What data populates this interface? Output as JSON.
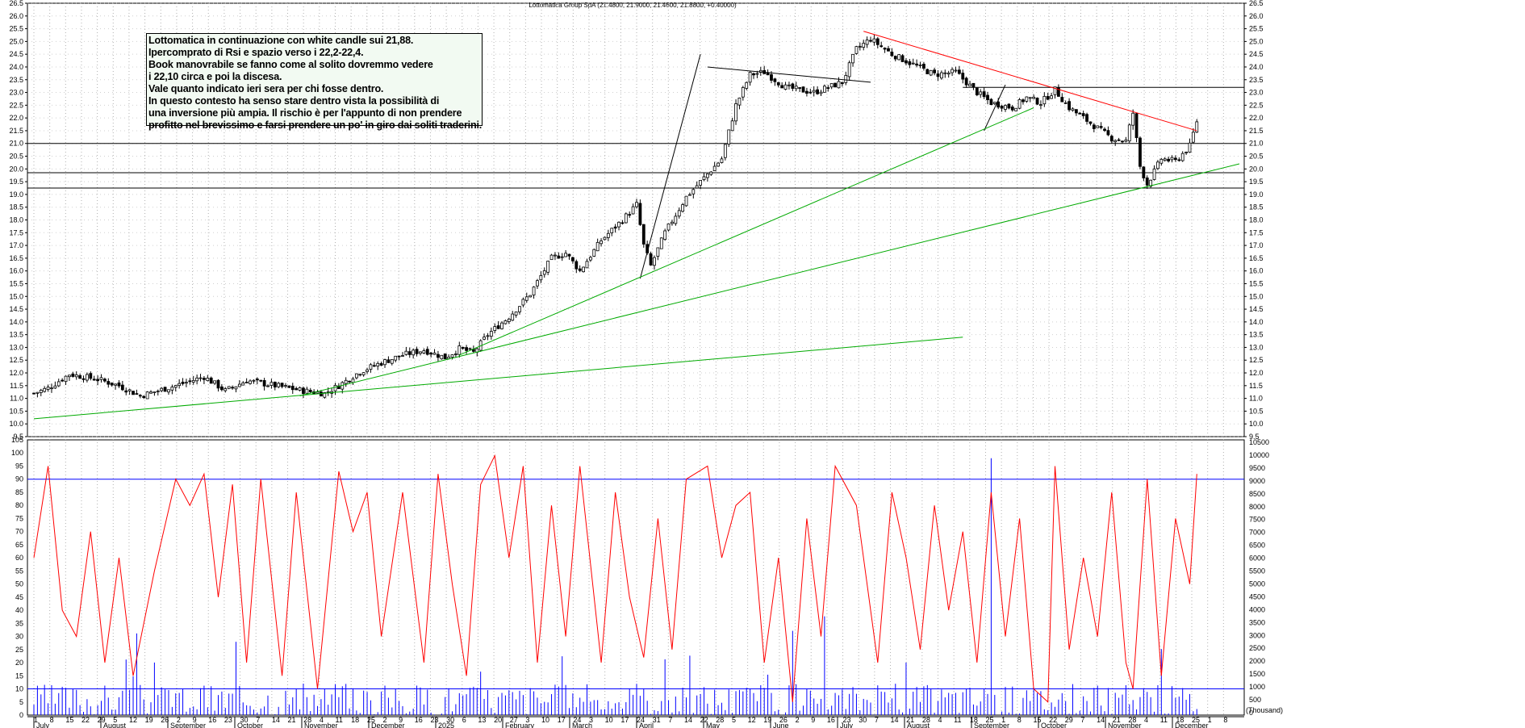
{
  "chart_data": {
    "type": "candlestick",
    "title": "Lottomatica Group SpA (21.4800, 21.9000, 21.4600, 21.8800, +0.40000)",
    "price_axis": {
      "range": [
        9.5,
        26.5
      ],
      "ticks": [
        "26.5",
        "26.0",
        "25.5",
        "25.0",
        "24.5",
        "24.0",
        "23.5",
        "23.0",
        "22.5",
        "22.0",
        "21.5",
        "21.0",
        "20.5",
        "20.0",
        "19.5",
        "19.0",
        "18.5",
        "18.0",
        "17.5",
        "17.0",
        "16.5",
        "16.0",
        "15.5",
        "15.0",
        "14.5",
        "14.0",
        "13.5",
        "13.0",
        "12.5",
        "12.0",
        "11.5",
        "11.0",
        "10.5",
        "10.0",
        "9.5"
      ]
    },
    "rsi_axis": {
      "range": [
        0,
        105
      ],
      "ticks": [
        "105",
        "100",
        "95",
        "90",
        "85",
        "80",
        "75",
        "70",
        "65",
        "60",
        "55",
        "50",
        "45",
        "40",
        "35",
        "30",
        "25",
        "20",
        "15",
        "10",
        "5",
        "0"
      ]
    },
    "volume_axis": {
      "ticks": [
        "10500",
        "10000",
        "9500",
        "9000",
        "8500",
        "8000",
        "7500",
        "7000",
        "6500",
        "6000",
        "5500",
        "5000",
        "4500",
        "4000",
        "3500",
        "3000",
        "2500",
        "2000",
        "1500",
        "1000",
        "500",
        "0"
      ],
      "unit": "(Thousand)"
    },
    "x_axis": {
      "day_labels": [
        "1",
        "8",
        "15",
        "22",
        "29",
        "5",
        "12",
        "19",
        "26",
        "2",
        "9",
        "16",
        "23",
        "30",
        "7",
        "14",
        "21",
        "28",
        "4",
        "11",
        "18",
        "25",
        "2",
        "9",
        "16",
        "23",
        "30",
        "6",
        "13",
        "20",
        "27",
        "3",
        "10",
        "17",
        "24",
        "3",
        "10",
        "17",
        "24",
        "31",
        "7",
        "14",
        "22",
        "28",
        "5",
        "12",
        "19",
        "26",
        "2",
        "9",
        "16",
        "23",
        "30",
        "7",
        "14",
        "21",
        "28",
        "4",
        "11",
        "18",
        "25",
        "1",
        "8",
        "15",
        "22",
        "29",
        "7",
        "14",
        "21",
        "28",
        "4",
        "11",
        "18",
        "25",
        "1",
        "8"
      ],
      "month_labels": [
        "July",
        "August",
        "September",
        "October",
        "November",
        "December",
        "2025",
        "February",
        "March",
        "April",
        "May",
        "June",
        "July",
        "August",
        "September",
        "October",
        "November",
        "December"
      ]
    },
    "horizontal_levels": [
      21.0,
      19.85,
      19.25,
      23.2
    ],
    "rsi_levels": [
      90,
      10
    ],
    "price_path": [
      [
        0,
        11.2
      ],
      [
        4,
        11.4
      ],
      [
        10,
        11.95
      ],
      [
        18,
        11.75
      ],
      [
        24,
        11.5
      ],
      [
        30,
        11.1
      ],
      [
        40,
        11.5
      ],
      [
        48,
        11.85
      ],
      [
        54,
        11.3
      ],
      [
        60,
        11.7
      ],
      [
        68,
        11.5
      ],
      [
        76,
        11.3
      ],
      [
        82,
        11.2
      ],
      [
        86,
        11.5
      ],
      [
        92,
        12.05
      ],
      [
        98,
        12.4
      ],
      [
        104,
        12.7
      ],
      [
        110,
        12.9
      ],
      [
        116,
        12.6
      ],
      [
        120,
        12.95
      ],
      [
        124,
        12.8
      ],
      [
        128,
        13.5
      ],
      [
        134,
        14.2
      ],
      [
        140,
        15.1
      ],
      [
        146,
        16.5
      ],
      [
        150,
        16.7
      ],
      [
        154,
        16.0
      ],
      [
        160,
        17.2
      ],
      [
        166,
        18.0
      ],
      [
        170,
        18.6
      ],
      [
        172,
        17.0
      ],
      [
        174,
        16.2
      ],
      [
        178,
        17.5
      ],
      [
        184,
        18.9
      ],
      [
        190,
        19.8
      ],
      [
        194,
        20.4
      ],
      [
        198,
        22.5
      ],
      [
        202,
        23.7
      ],
      [
        206,
        23.8
      ],
      [
        212,
        23.2
      ],
      [
        220,
        23.0
      ],
      [
        228,
        23.4
      ],
      [
        232,
        24.7
      ],
      [
        236,
        25.1
      ],
      [
        242,
        24.5
      ],
      [
        248,
        24.1
      ],
      [
        254,
        23.7
      ],
      [
        260,
        23.8
      ],
      [
        266,
        23.0
      ],
      [
        270,
        22.6
      ],
      [
        276,
        22.4
      ],
      [
        280,
        22.8
      ],
      [
        284,
        22.6
      ],
      [
        288,
        23.1
      ],
      [
        292,
        22.4
      ],
      [
        296,
        22.0
      ],
      [
        300,
        21.6
      ],
      [
        304,
        21.2
      ],
      [
        308,
        21.1
      ],
      [
        310,
        22.2
      ],
      [
        312,
        20.1
      ],
      [
        314,
        19.4
      ],
      [
        318,
        20.4
      ],
      [
        322,
        20.3
      ],
      [
        326,
        20.9
      ],
      [
        328,
        21.88
      ]
    ],
    "rsi_path": [
      [
        0,
        60
      ],
      [
        4,
        95
      ],
      [
        8,
        40
      ],
      [
        12,
        30
      ],
      [
        16,
        70
      ],
      [
        20,
        20
      ],
      [
        24,
        60
      ],
      [
        28,
        15
      ],
      [
        34,
        55
      ],
      [
        40,
        90
      ],
      [
        44,
        80
      ],
      [
        48,
        92
      ],
      [
        52,
        45
      ],
      [
        56,
        88
      ],
      [
        60,
        20
      ],
      [
        64,
        90
      ],
      [
        70,
        15
      ],
      [
        74,
        85
      ],
      [
        80,
        10
      ],
      [
        86,
        93
      ],
      [
        90,
        70
      ],
      [
        94,
        85
      ],
      [
        98,
        30
      ],
      [
        104,
        85
      ],
      [
        110,
        20
      ],
      [
        114,
        92
      ],
      [
        118,
        50
      ],
      [
        122,
        15
      ],
      [
        126,
        88
      ],
      [
        130,
        99
      ],
      [
        134,
        60
      ],
      [
        138,
        95
      ],
      [
        142,
        20
      ],
      [
        146,
        80
      ],
      [
        150,
        30
      ],
      [
        154,
        95
      ],
      [
        160,
        20
      ],
      [
        164,
        85
      ],
      [
        168,
        45
      ],
      [
        172,
        22
      ],
      [
        176,
        75
      ],
      [
        180,
        25
      ],
      [
        184,
        90
      ],
      [
        190,
        95
      ],
      [
        194,
        60
      ],
      [
        198,
        80
      ],
      [
        202,
        85
      ],
      [
        206,
        20
      ],
      [
        210,
        60
      ],
      [
        214,
        5
      ],
      [
        218,
        75
      ],
      [
        222,
        30
      ],
      [
        226,
        95
      ],
      [
        232,
        80
      ],
      [
        238,
        20
      ],
      [
        242,
        85
      ],
      [
        246,
        60
      ],
      [
        250,
        25
      ],
      [
        254,
        80
      ],
      [
        258,
        40
      ],
      [
        262,
        70
      ],
      [
        266,
        20
      ],
      [
        270,
        85
      ],
      [
        274,
        30
      ],
      [
        278,
        75
      ],
      [
        282,
        10
      ],
      [
        286,
        5
      ],
      [
        288,
        95
      ],
      [
        292,
        25
      ],
      [
        296,
        60
      ],
      [
        300,
        30
      ],
      [
        304,
        85
      ],
      [
        308,
        20
      ],
      [
        310,
        10
      ],
      [
        314,
        90
      ],
      [
        318,
        15
      ],
      [
        322,
        75
      ],
      [
        326,
        50
      ],
      [
        328,
        92
      ]
    ],
    "trendlines": [
      {
        "color": "#000000",
        "points": [
          [
            171,
            15.7
          ],
          [
            188,
            24.5
          ]
        ]
      },
      {
        "color": "#000000",
        "points": [
          [
            190,
            24.0
          ],
          [
            236,
            23.4
          ]
        ]
      },
      {
        "color": "#000000",
        "points": [
          [
            268,
            21.5
          ],
          [
            274,
            23.3
          ]
        ]
      },
      {
        "color": "#ff0000",
        "points": [
          [
            234,
            25.4
          ],
          [
            328,
            21.5
          ]
        ]
      },
      {
        "color": "#00aa00",
        "points": [
          [
            120,
            12.7
          ],
          [
            282,
            22.4
          ]
        ]
      },
      {
        "color": "#00aa00",
        "points": [
          [
            75,
            11.1
          ],
          [
            340,
            20.2
          ]
        ]
      },
      {
        "color": "#00aa00",
        "points": [
          [
            0,
            10.2
          ],
          [
            262,
            13.4
          ]
        ]
      }
    ]
  },
  "annotation": {
    "lines": [
      "Lottomatica in continuazione con white candle sui 21,88.",
      "Ipercomprato di Rsi e spazio verso i 22,2-22,4.",
      "Book manovrabile se fanno come al solito dovremmo vedere",
      "i 22,10 circa e poi la discesa.",
      "Vale quanto indicato ieri sera per chi fosse dentro.",
      "In questo contesto ha senso stare dentro vista la possibilità di",
      "una inversione più ampia. Il rischio è per l'appunto di non prendere",
      "profitto nel brevissimo e farsi prendere un po' in giro dai soliti traderini."
    ]
  },
  "colors": {
    "rsi": "#ff0000",
    "levels": "#0000ff",
    "volume": "#0000ff",
    "candle": "#000000",
    "grid": "#b0b0b0"
  }
}
